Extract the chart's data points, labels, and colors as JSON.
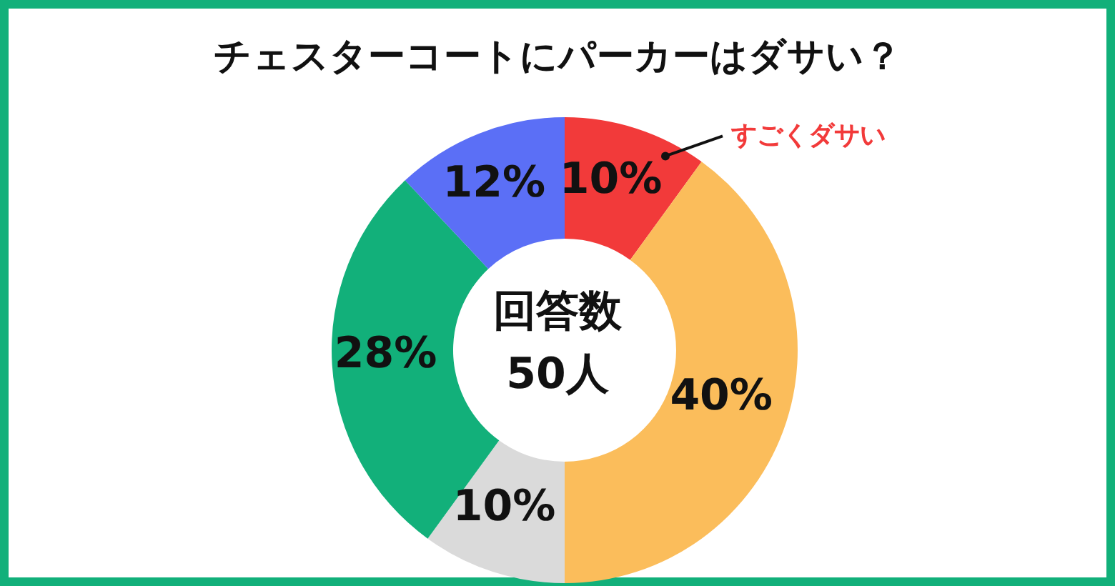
{
  "chart_data": {
    "type": "donut",
    "title": "チェスターコートにパーカーはダサい？",
    "categories": [
      "すごくダサい",
      null,
      null,
      null,
      null
    ],
    "values": [
      10,
      40,
      10,
      28,
      12
    ],
    "value_labels": [
      "10%",
      "40%",
      "10%",
      "28%",
      "12%"
    ],
    "colors": [
      "#f23a3a",
      "#fbbd5b",
      "#dadada",
      "#12b07a",
      "#5b6ff6"
    ],
    "annotations": [
      "回答数",
      "50人"
    ]
  }
}
